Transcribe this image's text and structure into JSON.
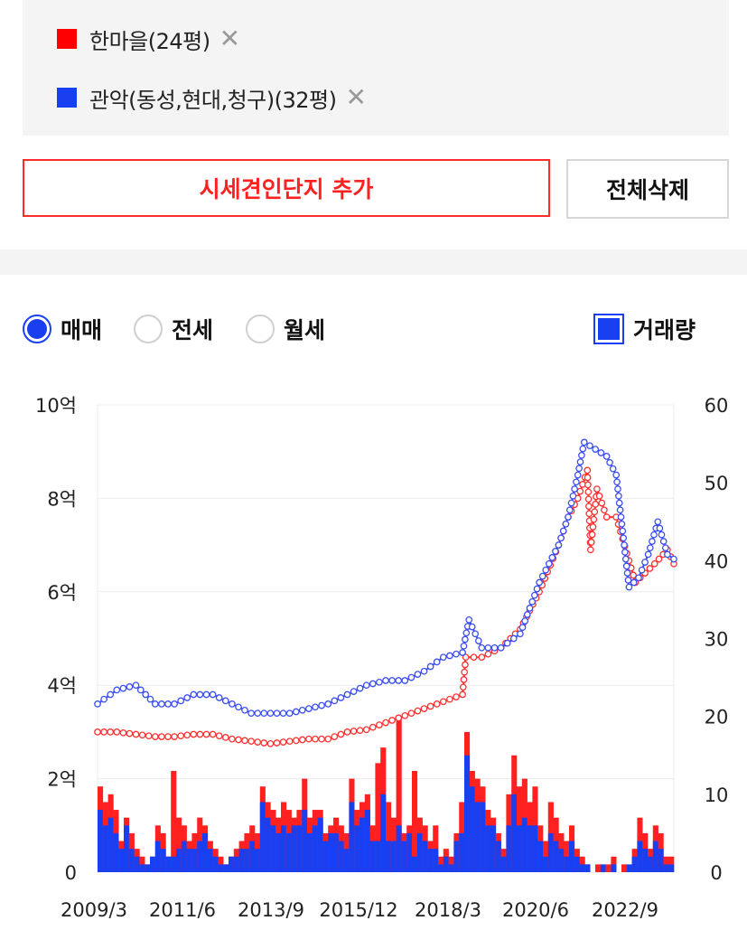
{
  "compare": {
    "items": [
      {
        "label": "한마을(24평)",
        "color": "#ff0000"
      },
      {
        "label": "관악(동성,현대,청구)(32평)",
        "color": "#1a3ff0"
      }
    ],
    "remove_symbol": "✕",
    "add_button": "시세견인단지 추가",
    "delete_all_button": "전체삭제"
  },
  "trade_type": {
    "options": [
      "매매",
      "전세",
      "월세"
    ],
    "selected": "매매"
  },
  "volume_toggle": {
    "label": "거래량",
    "checked": true
  },
  "chart_data": {
    "type": "line+bar",
    "y_left": {
      "ticks": [
        "0",
        "2억",
        "4억",
        "6억",
        "8억",
        "10억"
      ],
      "range": [
        0,
        10
      ],
      "unit": "억"
    },
    "y_right": {
      "ticks": [
        "0",
        "10",
        "20",
        "30",
        "40",
        "50",
        "60"
      ],
      "range": [
        0,
        60
      ]
    },
    "x_ticks": [
      "2009/3",
      "2011/6",
      "2013/9",
      "2015/12",
      "2018/3",
      "2020/6",
      "2022/9"
    ],
    "x_range": [
      "2009-03",
      "2024-03"
    ],
    "grid": true,
    "series": [
      {
        "color": "#ff3030",
        "points": [
          [
            "2009-03",
            3.0
          ],
          [
            "2009-09",
            3.0
          ],
          [
            "2010-03",
            2.95
          ],
          [
            "2010-09",
            2.9
          ],
          [
            "2011-03",
            2.9
          ],
          [
            "2011-09",
            2.95
          ],
          [
            "2012-03",
            2.95
          ],
          [
            "2012-09",
            2.85
          ],
          [
            "2013-03",
            2.8
          ],
          [
            "2013-09",
            2.75
          ],
          [
            "2014-03",
            2.8
          ],
          [
            "2014-09",
            2.85
          ],
          [
            "2015-03",
            2.85
          ],
          [
            "2015-09",
            3.0
          ],
          [
            "2016-03",
            3.05
          ],
          [
            "2016-09",
            3.2
          ],
          [
            "2017-03",
            3.35
          ],
          [
            "2017-09",
            3.5
          ],
          [
            "2018-03",
            3.65
          ],
          [
            "2018-09",
            3.8
          ],
          [
            "2018-10",
            4.6
          ],
          [
            "2019-03",
            4.6
          ],
          [
            "2019-09",
            4.8
          ],
          [
            "2020-03",
            5.2
          ],
          [
            "2020-09",
            6.0
          ],
          [
            "2021-03",
            7.0
          ],
          [
            "2021-06",
            7.6
          ],
          [
            "2021-09",
            8.0
          ],
          [
            "2021-12",
            8.6
          ],
          [
            "2022-01",
            6.9
          ],
          [
            "2022-03",
            8.2
          ],
          [
            "2022-06",
            7.6
          ],
          [
            "2022-09",
            7.6
          ],
          [
            "2023-03",
            6.2
          ],
          [
            "2023-09",
            6.6
          ],
          [
            "2024-01",
            6.9
          ],
          [
            "2024-03",
            6.6
          ]
        ]
      },
      {
        "color": "#3a4ef0",
        "points": [
          [
            "2009-03",
            3.6
          ],
          [
            "2009-09",
            3.9
          ],
          [
            "2010-03",
            4.0
          ],
          [
            "2010-09",
            3.6
          ],
          [
            "2011-03",
            3.6
          ],
          [
            "2011-09",
            3.8
          ],
          [
            "2012-03",
            3.8
          ],
          [
            "2012-09",
            3.6
          ],
          [
            "2013-03",
            3.4
          ],
          [
            "2013-09",
            3.4
          ],
          [
            "2014-03",
            3.4
          ],
          [
            "2014-09",
            3.5
          ],
          [
            "2015-03",
            3.6
          ],
          [
            "2015-09",
            3.8
          ],
          [
            "2016-03",
            4.0
          ],
          [
            "2016-09",
            4.1
          ],
          [
            "2017-03",
            4.1
          ],
          [
            "2017-09",
            4.3
          ],
          [
            "2018-03",
            4.6
          ],
          [
            "2018-09",
            4.7
          ],
          [
            "2018-11",
            5.4
          ],
          [
            "2019-03",
            4.8
          ],
          [
            "2019-09",
            4.8
          ],
          [
            "2020-03",
            5.1
          ],
          [
            "2020-09",
            6.2
          ],
          [
            "2021-03",
            7.0
          ],
          [
            "2021-06",
            7.6
          ],
          [
            "2021-09",
            8.5
          ],
          [
            "2021-11",
            9.2
          ],
          [
            "2022-06",
            8.9
          ],
          [
            "2022-09",
            8.5
          ],
          [
            "2023-01",
            6.1
          ],
          [
            "2023-04",
            6.3
          ],
          [
            "2023-07",
            6.8
          ],
          [
            "2023-10",
            7.5
          ],
          [
            "2024-01",
            6.8
          ],
          [
            "2024-03",
            6.7
          ]
        ]
      }
    ],
    "volume": {
      "red_color": "#ff2020",
      "blue_color": "#1a3ff0",
      "bars": [
        [
          11,
          8
        ],
        [
          9,
          6
        ],
        [
          10,
          7
        ],
        [
          8,
          5
        ],
        [
          4,
          3
        ],
        [
          7,
          6
        ],
        [
          5,
          3
        ],
        [
          3,
          2
        ],
        [
          2,
          1
        ],
        [
          1,
          1
        ],
        [
          2,
          2
        ],
        [
          6,
          4
        ],
        [
          5,
          3
        ],
        [
          2,
          2
        ],
        [
          13,
          2
        ],
        [
          7,
          3
        ],
        [
          6,
          4
        ],
        [
          4,
          3
        ],
        [
          5,
          3
        ],
        [
          7,
          4
        ],
        [
          6,
          5
        ],
        [
          4,
          3
        ],
        [
          3,
          2
        ],
        [
          2,
          1
        ],
        [
          1,
          1
        ],
        [
          2,
          2
        ],
        [
          3,
          2
        ],
        [
          4,
          3
        ],
        [
          5,
          3
        ],
        [
          6,
          4
        ],
        [
          5,
          3
        ],
        [
          11,
          9
        ],
        [
          9,
          7
        ],
        [
          8,
          6
        ],
        [
          7,
          5
        ],
        [
          9,
          6
        ],
        [
          8,
          5
        ],
        [
          7,
          6
        ],
        [
          8,
          6
        ],
        [
          12,
          8
        ],
        [
          7,
          5
        ],
        [
          8,
          6
        ],
        [
          8,
          7
        ],
        [
          5,
          4
        ],
        [
          6,
          5
        ],
        [
          7,
          5
        ],
        [
          6,
          4
        ],
        [
          5,
          3
        ],
        [
          12,
          9
        ],
        [
          8,
          6
        ],
        [
          9,
          7
        ],
        [
          10,
          8
        ],
        [
          6,
          4
        ],
        [
          14,
          4
        ],
        [
          16,
          10
        ],
        [
          9,
          4
        ],
        [
          7,
          4
        ],
        [
          20,
          6
        ],
        [
          5,
          4
        ],
        [
          6,
          5
        ],
        [
          13,
          2
        ],
        [
          7,
          5
        ],
        [
          6,
          4
        ],
        [
          4,
          3
        ],
        [
          6,
          3
        ],
        [
          2,
          1
        ],
        [
          3,
          2
        ],
        [
          2,
          1
        ],
        [
          5,
          4
        ],
        [
          9,
          5
        ],
        [
          18,
          15
        ],
        [
          13,
          11
        ],
        [
          12,
          9
        ],
        [
          11,
          9
        ],
        [
          8,
          6
        ],
        [
          7,
          6
        ],
        [
          5,
          4
        ],
        [
          3,
          2
        ],
        [
          10,
          6
        ],
        [
          15,
          10
        ],
        [
          11,
          6
        ],
        [
          12,
          7
        ],
        [
          9,
          6
        ],
        [
          11,
          6
        ],
        [
          6,
          4
        ],
        [
          4,
          2
        ],
        [
          9,
          5
        ],
        [
          7,
          4
        ],
        [
          5,
          3
        ],
        [
          4,
          2
        ],
        [
          6,
          4
        ],
        [
          3,
          2
        ],
        [
          2,
          1
        ],
        [
          1,
          1
        ],
        [
          0,
          0
        ],
        [
          1,
          0
        ],
        [
          0,
          1
        ],
        [
          1,
          0
        ],
        [
          2,
          1
        ],
        [
          0,
          0
        ],
        [
          1,
          0
        ],
        [
          0,
          1
        ],
        [
          3,
          2
        ],
        [
          7,
          4
        ],
        [
          5,
          3
        ],
        [
          3,
          2
        ],
        [
          6,
          4
        ],
        [
          5,
          3
        ],
        [
          2,
          1
        ],
        [
          2,
          1
        ]
      ]
    }
  }
}
